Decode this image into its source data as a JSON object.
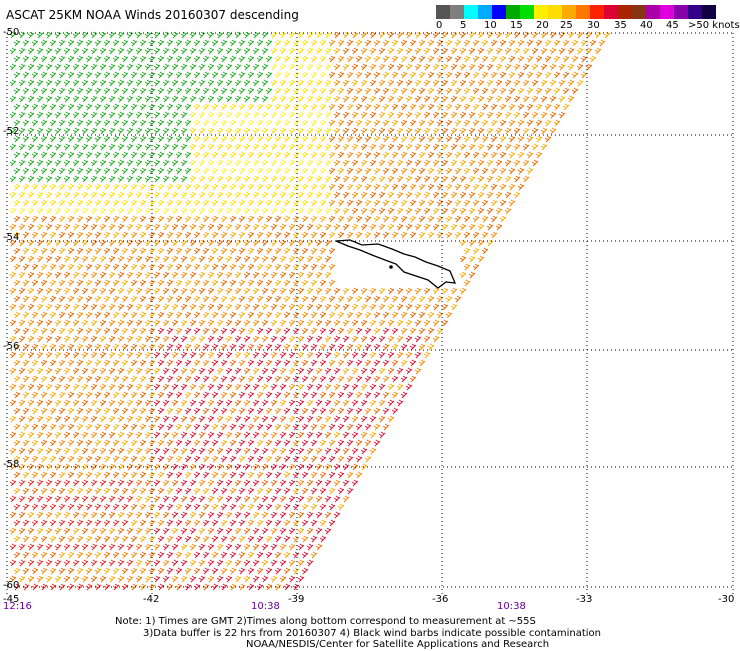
{
  "title": "ASCAT 25KM NOAA Winds 20160307 descending",
  "legend": {
    "labels": [
      "0",
      "5",
      "10",
      "15",
      "20",
      "25",
      "30",
      "35",
      "40",
      "45",
      ">50 knots"
    ],
    "colors": [
      "#555555",
      "#7f7f7f",
      "#00ffff",
      "#00aaff",
      "#0000ff",
      "#00aa00",
      "#00dd00",
      "#ffee00",
      "#ffdd00",
      "#ffaa00",
      "#ff7700",
      "#ff2200",
      "#dd0033",
      "#aa2200",
      "#883311",
      "#aa00aa",
      "#dd00dd",
      "#8800aa",
      "#330088",
      "#110044"
    ]
  },
  "axes": {
    "y_labels": [
      "-50",
      "-52",
      "-54",
      "-56",
      "-58",
      "-60"
    ],
    "x_labels": [
      "-45",
      "-42",
      "-39",
      "-36",
      "-33",
      "-30"
    ]
  },
  "times": [
    "12:16",
    "10:38",
    "10:38"
  ],
  "notes": [
    "Note: 1) Times are GMT 2)Times along bottom correspond to measurement at ~55S",
    "3)Data buffer is 22 hrs from 20160307 4) Black wind barbs indicate possible contamination",
    "NOAA/NESDIS/Center for Satellite Applications and Research"
  ]
}
